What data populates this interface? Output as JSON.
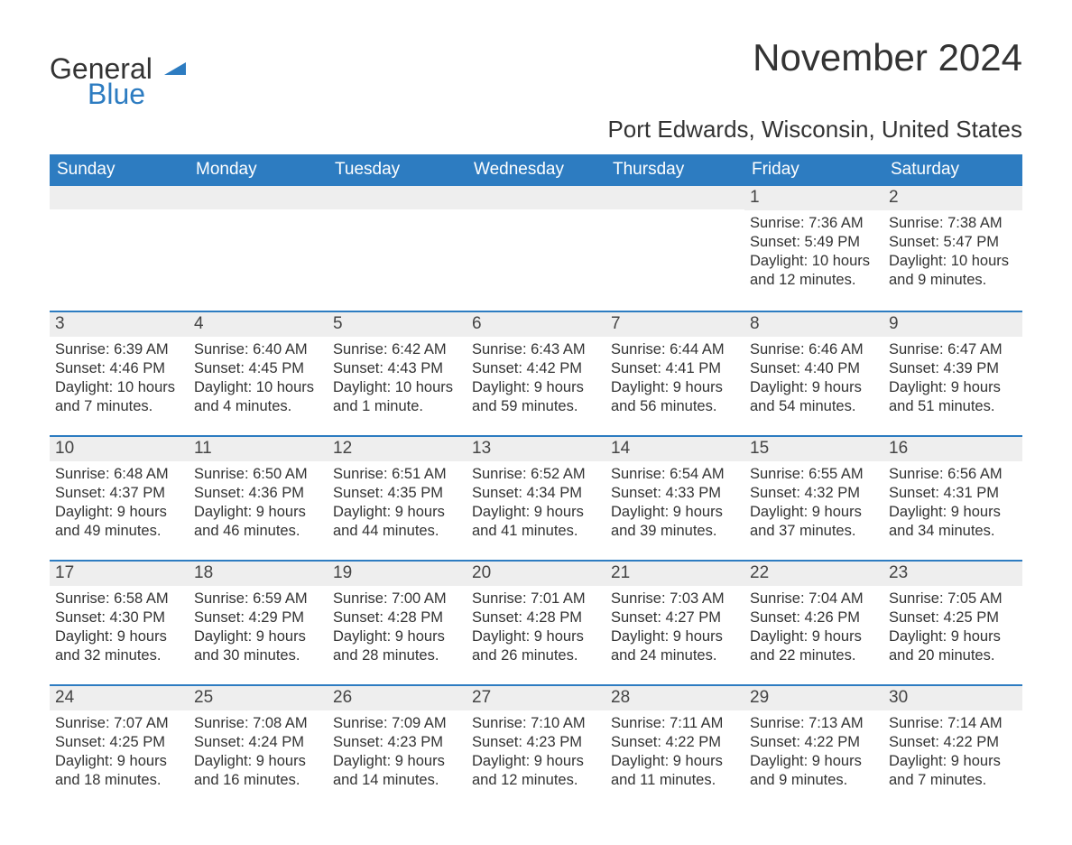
{
  "brand": {
    "part1": "General",
    "part2": "Blue"
  },
  "title": "November 2024",
  "location": "Port Edwards, Wisconsin, United States",
  "colors": {
    "header_bg": "#2d7cc1",
    "header_text": "#ffffff",
    "daynum_bg": "#eeeeee",
    "rule": "#2d7cc1",
    "text": "#333333",
    "page_bg": "#ffffff"
  },
  "typography": {
    "title_fontsize": 42,
    "location_fontsize": 26,
    "dow_fontsize": 19,
    "daynum_fontsize": 19,
    "body_fontsize": 16.5
  },
  "labels": {
    "sunrise": "Sunrise",
    "sunset": "Sunset",
    "daylight": "Daylight"
  },
  "days_of_week": [
    "Sunday",
    "Monday",
    "Tuesday",
    "Wednesday",
    "Thursday",
    "Friday",
    "Saturday"
  ],
  "weeks": [
    [
      {
        "blank": true
      },
      {
        "blank": true
      },
      {
        "blank": true
      },
      {
        "blank": true
      },
      {
        "blank": true
      },
      {
        "n": 1,
        "sunrise": "7:36 AM",
        "sunset": "5:49 PM",
        "daylight": "10 hours and 12 minutes."
      },
      {
        "n": 2,
        "sunrise": "7:38 AM",
        "sunset": "5:47 PM",
        "daylight": "10 hours and 9 minutes."
      }
    ],
    [
      {
        "n": 3,
        "sunrise": "6:39 AM",
        "sunset": "4:46 PM",
        "daylight": "10 hours and 7 minutes."
      },
      {
        "n": 4,
        "sunrise": "6:40 AM",
        "sunset": "4:45 PM",
        "daylight": "10 hours and 4 minutes."
      },
      {
        "n": 5,
        "sunrise": "6:42 AM",
        "sunset": "4:43 PM",
        "daylight": "10 hours and 1 minute."
      },
      {
        "n": 6,
        "sunrise": "6:43 AM",
        "sunset": "4:42 PM",
        "daylight": "9 hours and 59 minutes."
      },
      {
        "n": 7,
        "sunrise": "6:44 AM",
        "sunset": "4:41 PM",
        "daylight": "9 hours and 56 minutes."
      },
      {
        "n": 8,
        "sunrise": "6:46 AM",
        "sunset": "4:40 PM",
        "daylight": "9 hours and 54 minutes."
      },
      {
        "n": 9,
        "sunrise": "6:47 AM",
        "sunset": "4:39 PM",
        "daylight": "9 hours and 51 minutes."
      }
    ],
    [
      {
        "n": 10,
        "sunrise": "6:48 AM",
        "sunset": "4:37 PM",
        "daylight": "9 hours and 49 minutes."
      },
      {
        "n": 11,
        "sunrise": "6:50 AM",
        "sunset": "4:36 PM",
        "daylight": "9 hours and 46 minutes."
      },
      {
        "n": 12,
        "sunrise": "6:51 AM",
        "sunset": "4:35 PM",
        "daylight": "9 hours and 44 minutes."
      },
      {
        "n": 13,
        "sunrise": "6:52 AM",
        "sunset": "4:34 PM",
        "daylight": "9 hours and 41 minutes."
      },
      {
        "n": 14,
        "sunrise": "6:54 AM",
        "sunset": "4:33 PM",
        "daylight": "9 hours and 39 minutes."
      },
      {
        "n": 15,
        "sunrise": "6:55 AM",
        "sunset": "4:32 PM",
        "daylight": "9 hours and 37 minutes."
      },
      {
        "n": 16,
        "sunrise": "6:56 AM",
        "sunset": "4:31 PM",
        "daylight": "9 hours and 34 minutes."
      }
    ],
    [
      {
        "n": 17,
        "sunrise": "6:58 AM",
        "sunset": "4:30 PM",
        "daylight": "9 hours and 32 minutes."
      },
      {
        "n": 18,
        "sunrise": "6:59 AM",
        "sunset": "4:29 PM",
        "daylight": "9 hours and 30 minutes."
      },
      {
        "n": 19,
        "sunrise": "7:00 AM",
        "sunset": "4:28 PM",
        "daylight": "9 hours and 28 minutes."
      },
      {
        "n": 20,
        "sunrise": "7:01 AM",
        "sunset": "4:28 PM",
        "daylight": "9 hours and 26 minutes."
      },
      {
        "n": 21,
        "sunrise": "7:03 AM",
        "sunset": "4:27 PM",
        "daylight": "9 hours and 24 minutes."
      },
      {
        "n": 22,
        "sunrise": "7:04 AM",
        "sunset": "4:26 PM",
        "daylight": "9 hours and 22 minutes."
      },
      {
        "n": 23,
        "sunrise": "7:05 AM",
        "sunset": "4:25 PM",
        "daylight": "9 hours and 20 minutes."
      }
    ],
    [
      {
        "n": 24,
        "sunrise": "7:07 AM",
        "sunset": "4:25 PM",
        "daylight": "9 hours and 18 minutes."
      },
      {
        "n": 25,
        "sunrise": "7:08 AM",
        "sunset": "4:24 PM",
        "daylight": "9 hours and 16 minutes."
      },
      {
        "n": 26,
        "sunrise": "7:09 AM",
        "sunset": "4:23 PM",
        "daylight": "9 hours and 14 minutes."
      },
      {
        "n": 27,
        "sunrise": "7:10 AM",
        "sunset": "4:23 PM",
        "daylight": "9 hours and 12 minutes."
      },
      {
        "n": 28,
        "sunrise": "7:11 AM",
        "sunset": "4:22 PM",
        "daylight": "9 hours and 11 minutes."
      },
      {
        "n": 29,
        "sunrise": "7:13 AM",
        "sunset": "4:22 PM",
        "daylight": "9 hours and 9 minutes."
      },
      {
        "n": 30,
        "sunrise": "7:14 AM",
        "sunset": "4:22 PM",
        "daylight": "9 hours and 7 minutes."
      }
    ]
  ]
}
